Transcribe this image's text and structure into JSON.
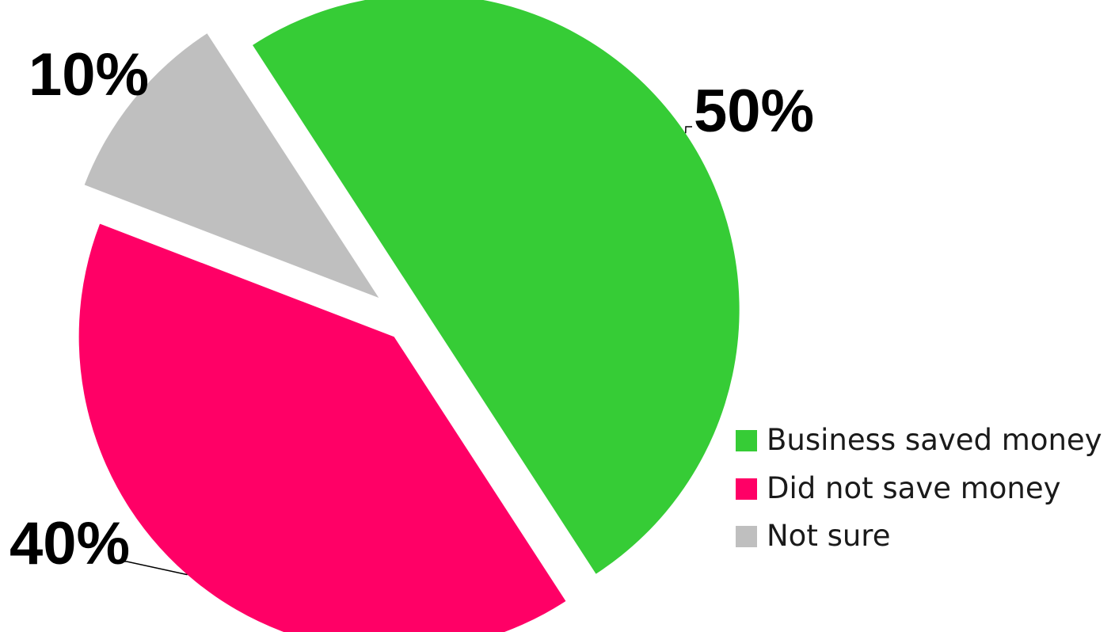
{
  "chart_data": {
    "type": "pie",
    "title": "",
    "categories": [
      "Business saved money",
      "Did not save money",
      "Not sure"
    ],
    "values": [
      50,
      40,
      10
    ],
    "unit": "%",
    "data_labels": [
      "50%",
      "40%",
      "10%"
    ],
    "colors": [
      "#36cc36",
      "#ff0066",
      "#bfbfbf"
    ],
    "exploded": true,
    "legend": {
      "position": "bottom-right",
      "entries": [
        "Business saved money",
        "Did not save money",
        "Not sure"
      ]
    }
  }
}
